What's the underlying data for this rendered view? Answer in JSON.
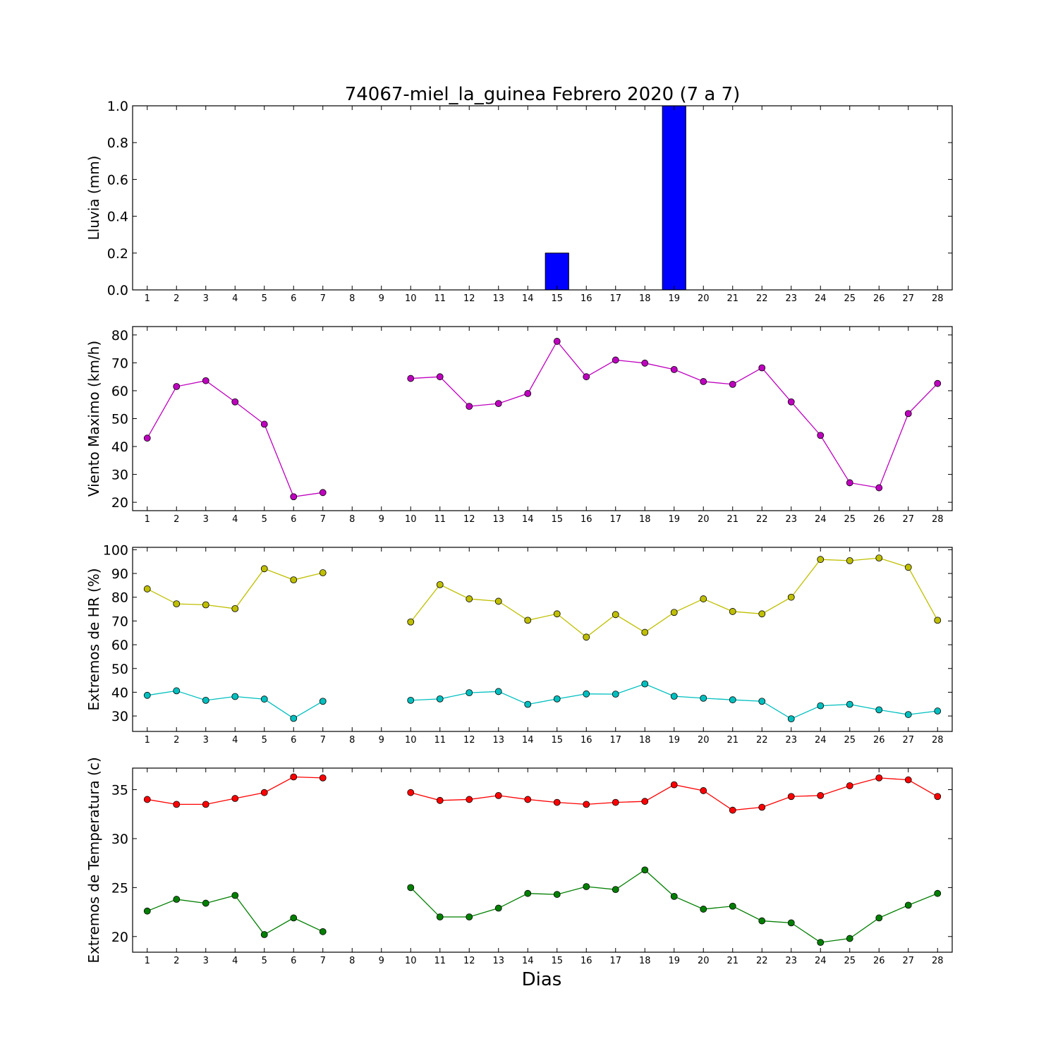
{
  "title": "74067-miel_la_guinea Febrero 2020  (7 a 7)",
  "xlabel": "Dias",
  "chart_data": [
    {
      "type": "bar",
      "ylabel": "Lluvia (mm)",
      "ylim": [
        0,
        1.0
      ],
      "yticks": [
        0.0,
        0.2,
        0.4,
        0.6,
        0.8,
        1.0
      ],
      "ytick_labels": [
        "0.0",
        "0.2",
        "0.4",
        "0.6",
        "0.8",
        "1.0"
      ],
      "xticks": [
        1,
        2,
        3,
        4,
        5,
        6,
        7,
        8,
        9,
        10,
        11,
        12,
        13,
        14,
        15,
        16,
        17,
        18,
        19,
        20,
        21,
        22,
        23,
        24,
        25,
        26,
        27,
        28
      ],
      "series": [
        {
          "color": "#0000ff",
          "values": [
            0,
            0,
            0,
            0,
            0,
            0,
            0,
            null,
            null,
            0,
            0,
            0,
            0,
            0,
            0.2,
            0,
            0,
            0,
            1.0,
            0,
            0,
            0,
            0,
            0,
            0,
            0,
            0,
            0
          ]
        }
      ]
    },
    {
      "type": "line",
      "ylabel": "Viento Maximo (km/h)",
      "ylim": [
        17,
        83
      ],
      "yticks": [
        20,
        30,
        40,
        50,
        60,
        70,
        80
      ],
      "ytick_labels": [
        "20",
        "30",
        "40",
        "50",
        "60",
        "70",
        "80"
      ],
      "xticks": [
        1,
        2,
        3,
        4,
        5,
        6,
        7,
        8,
        9,
        10,
        11,
        12,
        13,
        14,
        15,
        16,
        17,
        18,
        19,
        20,
        21,
        22,
        23,
        24,
        25,
        26,
        27,
        28
      ],
      "series": [
        {
          "color": "#bf00bf",
          "values": [
            43,
            61.5,
            63.6,
            56,
            48,
            22,
            23.5,
            null,
            null,
            64.4,
            65,
            54.4,
            55.4,
            59,
            77.7,
            65,
            71,
            69.9,
            67.6,
            63.3,
            62.3,
            68.2,
            56,
            44,
            27,
            25.2,
            51.8,
            62.6
          ]
        }
      ]
    },
    {
      "type": "line",
      "ylabel": "Extremos de HR (%)",
      "ylim": [
        23.5,
        101
      ],
      "yticks": [
        30,
        40,
        50,
        60,
        70,
        80,
        90,
        100
      ],
      "ytick_labels": [
        "30",
        "40",
        "50",
        "60",
        "70",
        "80",
        "90",
        "100"
      ],
      "xticks": [
        1,
        2,
        3,
        4,
        5,
        6,
        7,
        8,
        9,
        10,
        11,
        12,
        13,
        14,
        15,
        16,
        17,
        18,
        19,
        20,
        21,
        22,
        23,
        24,
        25,
        26,
        27,
        28
      ],
      "series": [
        {
          "color": "#bfbf00",
          "values": [
            83.5,
            77.2,
            76.8,
            75.2,
            92,
            87.3,
            90.3,
            null,
            null,
            69.6,
            85.3,
            79.3,
            78.3,
            70.3,
            73,
            63.2,
            72.7,
            65.2,
            73.6,
            79.3,
            74,
            73,
            80,
            95.9,
            95.4,
            96.5,
            92.6,
            70.3
          ]
        },
        {
          "color": "#00bfbf",
          "values": [
            38.7,
            40.6,
            36.6,
            38.2,
            37.1,
            29,
            36.2,
            null,
            null,
            36.6,
            37.2,
            39.8,
            40.3,
            34.9,
            37.2,
            39.3,
            39.2,
            43.5,
            38.3,
            37.5,
            36.8,
            36.2,
            28.8,
            34.3,
            34.9,
            32.6,
            30.6,
            32.1
          ]
        }
      ]
    },
    {
      "type": "line",
      "ylabel": "Extremos de Temperatura (c)",
      "ylim": [
        18.4,
        37.2
      ],
      "yticks": [
        20,
        25,
        30,
        35
      ],
      "ytick_labels": [
        "20",
        "25",
        "30",
        "35"
      ],
      "xticks": [
        1,
        2,
        3,
        4,
        5,
        6,
        7,
        8,
        9,
        10,
        11,
        12,
        13,
        14,
        15,
        16,
        17,
        18,
        19,
        20,
        21,
        22,
        23,
        24,
        25,
        26,
        27,
        28
      ],
      "series": [
        {
          "color": "#ff0000",
          "values": [
            34,
            33.5,
            33.5,
            34.1,
            34.7,
            36.3,
            36.2,
            null,
            null,
            34.7,
            33.9,
            34,
            34.4,
            34,
            33.7,
            33.5,
            33.7,
            33.8,
            35.5,
            34.9,
            32.9,
            33.2,
            34.3,
            34.4,
            35.4,
            36.2,
            36,
            34.3
          ]
        },
        {
          "color": "#007f00",
          "values": [
            22.6,
            23.8,
            23.4,
            24.2,
            20.2,
            21.9,
            20.5,
            null,
            null,
            25,
            22,
            22,
            22.9,
            24.4,
            24.3,
            25.1,
            24.8,
            26.8,
            24.1,
            22.8,
            23.1,
            21.6,
            21.4,
            19.4,
            19.8,
            21.9,
            23.2,
            24.4
          ]
        }
      ]
    }
  ]
}
